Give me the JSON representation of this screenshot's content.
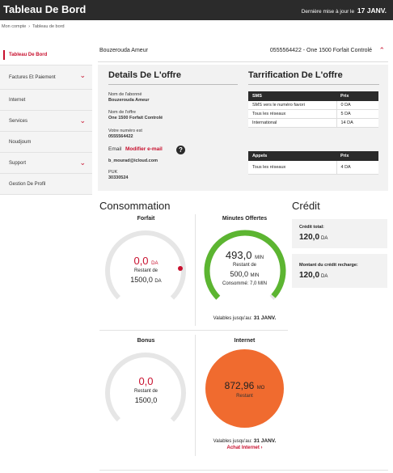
{
  "header": {
    "title": "Tableau De Bord",
    "update_label": "Dernière mise à jour le",
    "update_date": "17 JANV."
  },
  "breadcrumb": {
    "items": [
      "Mon compte",
      "Tableau de bord"
    ]
  },
  "sidebar": {
    "items": [
      {
        "label": "Tableau De Bord",
        "chevron": false,
        "active": true
      },
      {
        "label": "Factures Et Paiement",
        "chevron": true
      },
      {
        "label": "Internet",
        "chevron": false
      },
      {
        "label": "Services",
        "chevron": true
      },
      {
        "label": "Noudjoum",
        "chevron": false
      },
      {
        "label": "Support",
        "chevron": true
      },
      {
        "label": "Gestion De Profil",
        "chevron": false
      }
    ]
  },
  "account": {
    "name": "Bouzerouda Ameur",
    "line": "0555564422 - One 1500 Forfait Controlé"
  },
  "offer": {
    "title": "Details De L'offre",
    "subscriber_label": "Nom de l'abonné",
    "subscriber_value": "Bouzerouda Ameur",
    "offer_label": "Nom de l'offre",
    "offer_value": "One 1500 Forfait Controlé",
    "number_label": "Votre numéro est",
    "number_value": "0555564422",
    "email_label": "Email",
    "email_link": "Modifier e-mail",
    "help_icon": "?",
    "email_value": "b_mourad@icloud.com",
    "puk_label": "PUK",
    "puk_value": "30330524"
  },
  "tarif": {
    "title": "Tarrification De L'offre",
    "sms_table": {
      "headers": [
        "SMS",
        "Prix"
      ],
      "rows": [
        [
          "SMS vers le numéro favori",
          "0 DA"
        ],
        [
          "Tous les réseaux",
          "5 DA"
        ],
        [
          "International",
          "14 DA"
        ]
      ]
    },
    "calls_table": {
      "headers": [
        "Appels",
        "Prix"
      ],
      "rows": [
        [
          "Tous les réseaux",
          "4 DA"
        ]
      ]
    }
  },
  "consommation": {
    "title": "Consommation",
    "forfait": {
      "title": "Forfait",
      "value": "0,0",
      "unit": "DA",
      "remaining_label": "Restant de",
      "remaining": "1500,0",
      "remaining_unit": "DA",
      "fraction": 0.0
    },
    "minutes": {
      "title": "Minutes Offertes",
      "value": "493,0",
      "unit": "MIN",
      "remaining_label": "Restant de",
      "remaining": "500,0",
      "remaining_unit": "MIN",
      "consumed": "Consommé: 7,0 MIN",
      "valid_label": "Valables jusqu'au:",
      "valid_date": "31 JANV.",
      "fraction": 0.986
    },
    "bonus": {
      "title": "Bonus",
      "value": "0,0",
      "remaining_label": "Restant de",
      "remaining": "1500,0",
      "fraction": 0.0
    },
    "internet": {
      "title": "Internet",
      "value": "872,96",
      "unit": "MO",
      "remaining_label": "Restant",
      "valid_label": "Valables jusqu'au:",
      "valid_date": "31 JANV.",
      "buy_link": "Achat Internet",
      "buy_chevron": "›"
    }
  },
  "credit": {
    "title": "Crédit",
    "total_label": "Crédit total:",
    "total_value": "120,0",
    "total_unit": "DA",
    "recharge_label": "Montant du crédit recharge:",
    "recharge_value": "120,0",
    "recharge_unit": "DA"
  },
  "colors": {
    "accent": "#c8102e",
    "green": "#5cb531",
    "orange": "#f06b2f",
    "dark": "#2b2b2b"
  }
}
